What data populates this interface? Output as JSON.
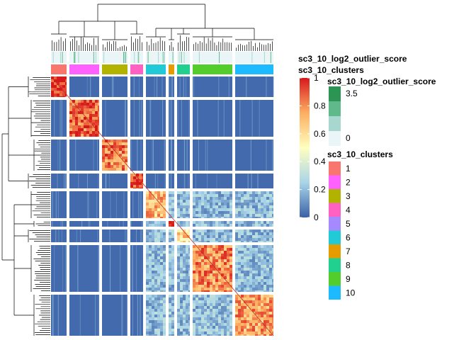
{
  "chart_data": {
    "type": "heatmap",
    "title": "",
    "row_annotations": [
      {
        "name": "sc3_10_log2_outlier_score"
      },
      {
        "name": "sc3_10_clusters"
      }
    ],
    "clusters": [
      "1",
      "2",
      "3",
      "4",
      "5",
      "6",
      "7",
      "8",
      "9",
      "10"
    ],
    "cluster_colors": [
      "#F8766D",
      "#FF61FF",
      "#B1B300",
      "#FF61C3",
      "#A58AFF",
      "#22C9D6",
      "#E69B00",
      "#21D08E",
      "#52CD2B",
      "#1EBAFF"
    ],
    "column_cluster_order": [
      "1",
      "2",
      "3",
      "4",
      "6",
      "7",
      "8",
      "9",
      "10"
    ],
    "column_block_widths": [
      22,
      42,
      36,
      18,
      28,
      8,
      18,
      56,
      54
    ],
    "row_block_heights": [
      29,
      52,
      44,
      21,
      38,
      8,
      18,
      66,
      58
    ],
    "similarity_colorbar": {
      "ticks": [
        "0",
        "0.2",
        "0.4",
        "0.6",
        "0.8",
        "1"
      ],
      "range": [
        0,
        1
      ],
      "colors": [
        "#3A61A8",
        "#A9D5E8",
        "#FFFFBF",
        "#FDAE61",
        "#D7191C"
      ]
    },
    "outlier_score_legend": {
      "title": "sc3_10_log2_outlier_score",
      "ticks": [
        "3.5",
        "0"
      ],
      "colors": [
        "#2C9553",
        "#5FB98A",
        "#A8D7CF",
        "#EAF5F8"
      ]
    },
    "cluster_legend": {
      "title": "sc3_10_clusters",
      "labels": [
        "1",
        "2",
        "3",
        "4",
        "5",
        "6",
        "7",
        "8",
        "9",
        "10"
      ]
    }
  }
}
